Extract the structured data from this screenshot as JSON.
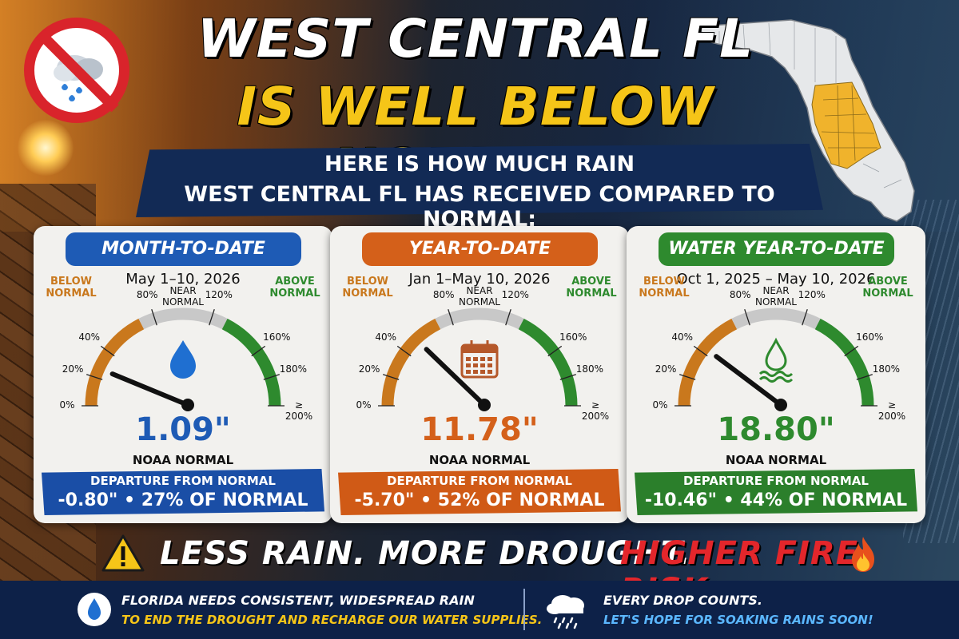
{
  "title": {
    "line1": "WEST CENTRAL FL",
    "line2": "IS WELL BELOW NORMAL!"
  },
  "subtitle": {
    "line1": "HERE IS HOW MUCH RAIN",
    "line2": "WEST CENTRAL FL HAS RECEIVED COMPARED TO NORMAL:"
  },
  "icons": {
    "top_left": "no-rain-icon",
    "map": "florida-map-icon",
    "card1": "water-drop-icon",
    "card2": "calendar-icon",
    "card3": "water-wave-icon",
    "warning": "warning-icon",
    "fire": "fire-icon",
    "footer_left": "water-drop-icon",
    "footer_right": "rain-cloud-icon"
  },
  "gauge_labels": {
    "below": "BELOW NORMAL",
    "near": "NEAR NORMAL",
    "above": "ABOVE NORMAL",
    "ticks": [
      "0%",
      "20%",
      "40%",
      "80%",
      "120%",
      "160%",
      "180%",
      "≥ 200%"
    ]
  },
  "cards": [
    {
      "header": "MONTH-TO-DATE",
      "range": "May 1–10, 2026",
      "value": "1.09\"",
      "noaa": "NOAA NORMAL",
      "departure_label": "DEPARTURE FROM NORMAL",
      "departure_value": "-0.80\" • 27% OF NORMAL",
      "percent_of_normal": 27,
      "color": "#1e5bb5"
    },
    {
      "header": "YEAR-TO-DATE",
      "range": "Jan 1–May 10, 2026",
      "value": "11.78\"",
      "noaa": "NOAA NORMAL",
      "departure_label": "DEPARTURE FROM NORMAL",
      "departure_value": "-5.70\" • 52% OF NORMAL",
      "percent_of_normal": 52,
      "color": "#d4601a"
    },
    {
      "header": "WATER YEAR-TO-DATE",
      "range": "Oct 1, 2025 – May 10, 2026",
      "value": "18.80\"",
      "noaa": "NOAA NORMAL",
      "departure_label": "DEPARTURE FROM NORMAL",
      "departure_value": "-10.46\" • 44% OF NORMAL",
      "percent_of_normal": 44,
      "color": "#2e8a2e"
    }
  ],
  "warning": {
    "part1": "LESS RAIN. MORE DROUGHT.",
    "part2": "HIGHER FIRE RISK."
  },
  "footer": {
    "left_line1": "FLORIDA NEEDS CONSISTENT, WIDESPREAD RAIN",
    "left_line2": "TO END THE DROUGHT AND RECHARGE OUR WATER SUPPLIES.",
    "right_line1": "EVERY DROP COUNTS.",
    "right_line2": "LET'S HOPE FOR SOAKING RAINS SOON!"
  },
  "colors": {
    "title_yellow": "#f5c518",
    "fire_red": "#e3262b",
    "navy": "#0d2148",
    "gauge_low": "#c9781d",
    "gauge_mid": "#c8c8c8",
    "gauge_high": "#2e8a2e"
  }
}
